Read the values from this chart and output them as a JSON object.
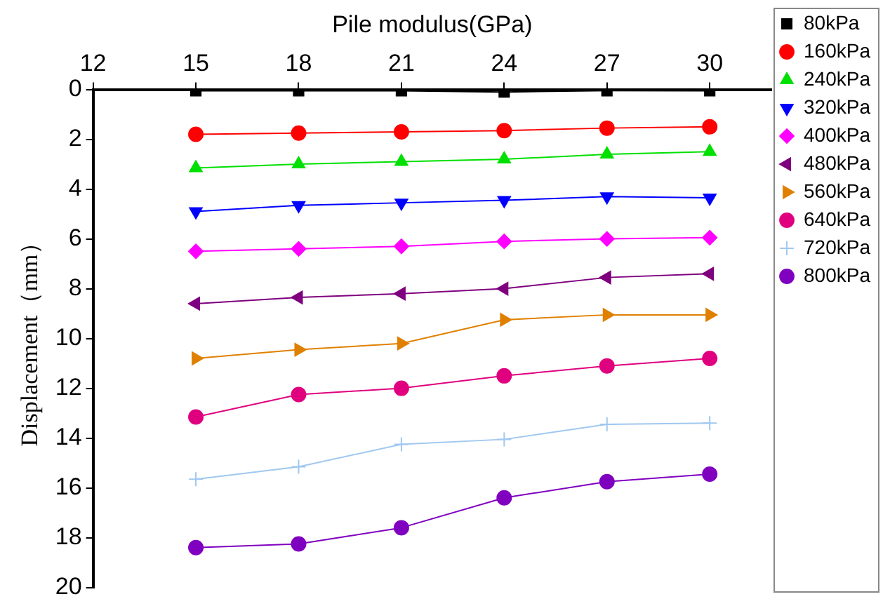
{
  "chart_data": {
    "type": "line",
    "xlabel": "Pile modulus(GPa)",
    "ylabel": "Displacement（mm）",
    "x": [
      15,
      18,
      21,
      24,
      27,
      30
    ],
    "xlim": [
      12,
      31.8
    ],
    "xticks": [
      12,
      15,
      18,
      21,
      24,
      27,
      30
    ],
    "ylim": [
      20,
      0
    ],
    "yticks": [
      0,
      2,
      4,
      6,
      8,
      10,
      12,
      14,
      16,
      18,
      20
    ],
    "grid": false,
    "legend": "right",
    "line_style": "solid",
    "series": [
      {
        "name": "80kPa",
        "color": "#000000",
        "marker": "square",
        "values": [
          0.05,
          0.05,
          0.05,
          0.1,
          0.05,
          0.05
        ]
      },
      {
        "name": "160kPa",
        "color": "#ff0000",
        "marker": "circle",
        "values": [
          1.8,
          1.75,
          1.7,
          1.65,
          1.55,
          1.5
        ]
      },
      {
        "name": "240kPa",
        "color": "#00e000",
        "marker": "triangle",
        "values": [
          3.15,
          3.0,
          2.9,
          2.8,
          2.6,
          2.5
        ]
      },
      {
        "name": "320kPa",
        "color": "#0000ff",
        "marker": "triangle-down",
        "values": [
          4.9,
          4.65,
          4.55,
          4.45,
          4.3,
          4.35
        ]
      },
      {
        "name": "400kPa",
        "color": "#ff00ff",
        "marker": "diamond",
        "values": [
          6.5,
          6.4,
          6.3,
          6.1,
          6.0,
          5.95
        ]
      },
      {
        "name": "480kPa",
        "color": "#7f007f",
        "marker": "triangle-left",
        "values": [
          8.6,
          8.35,
          8.2,
          8.0,
          7.55,
          7.4
        ]
      },
      {
        "name": "560kPa",
        "color": "#e08000",
        "marker": "triangle-right",
        "values": [
          10.8,
          10.45,
          10.2,
          9.25,
          9.05,
          9.05
        ]
      },
      {
        "name": "640kPa",
        "color": "#e0007f",
        "marker": "circle",
        "values": [
          13.15,
          12.25,
          12.0,
          11.5,
          11.1,
          10.8
        ]
      },
      {
        "name": "720kPa",
        "color": "#a0c8f0",
        "marker": "cross",
        "values": [
          15.65,
          15.15,
          14.25,
          14.05,
          13.45,
          13.4
        ]
      },
      {
        "name": "800kPa",
        "color": "#8000c0",
        "marker": "circle",
        "values": [
          18.4,
          18.25,
          17.6,
          16.4,
          15.75,
          15.45
        ]
      }
    ]
  }
}
